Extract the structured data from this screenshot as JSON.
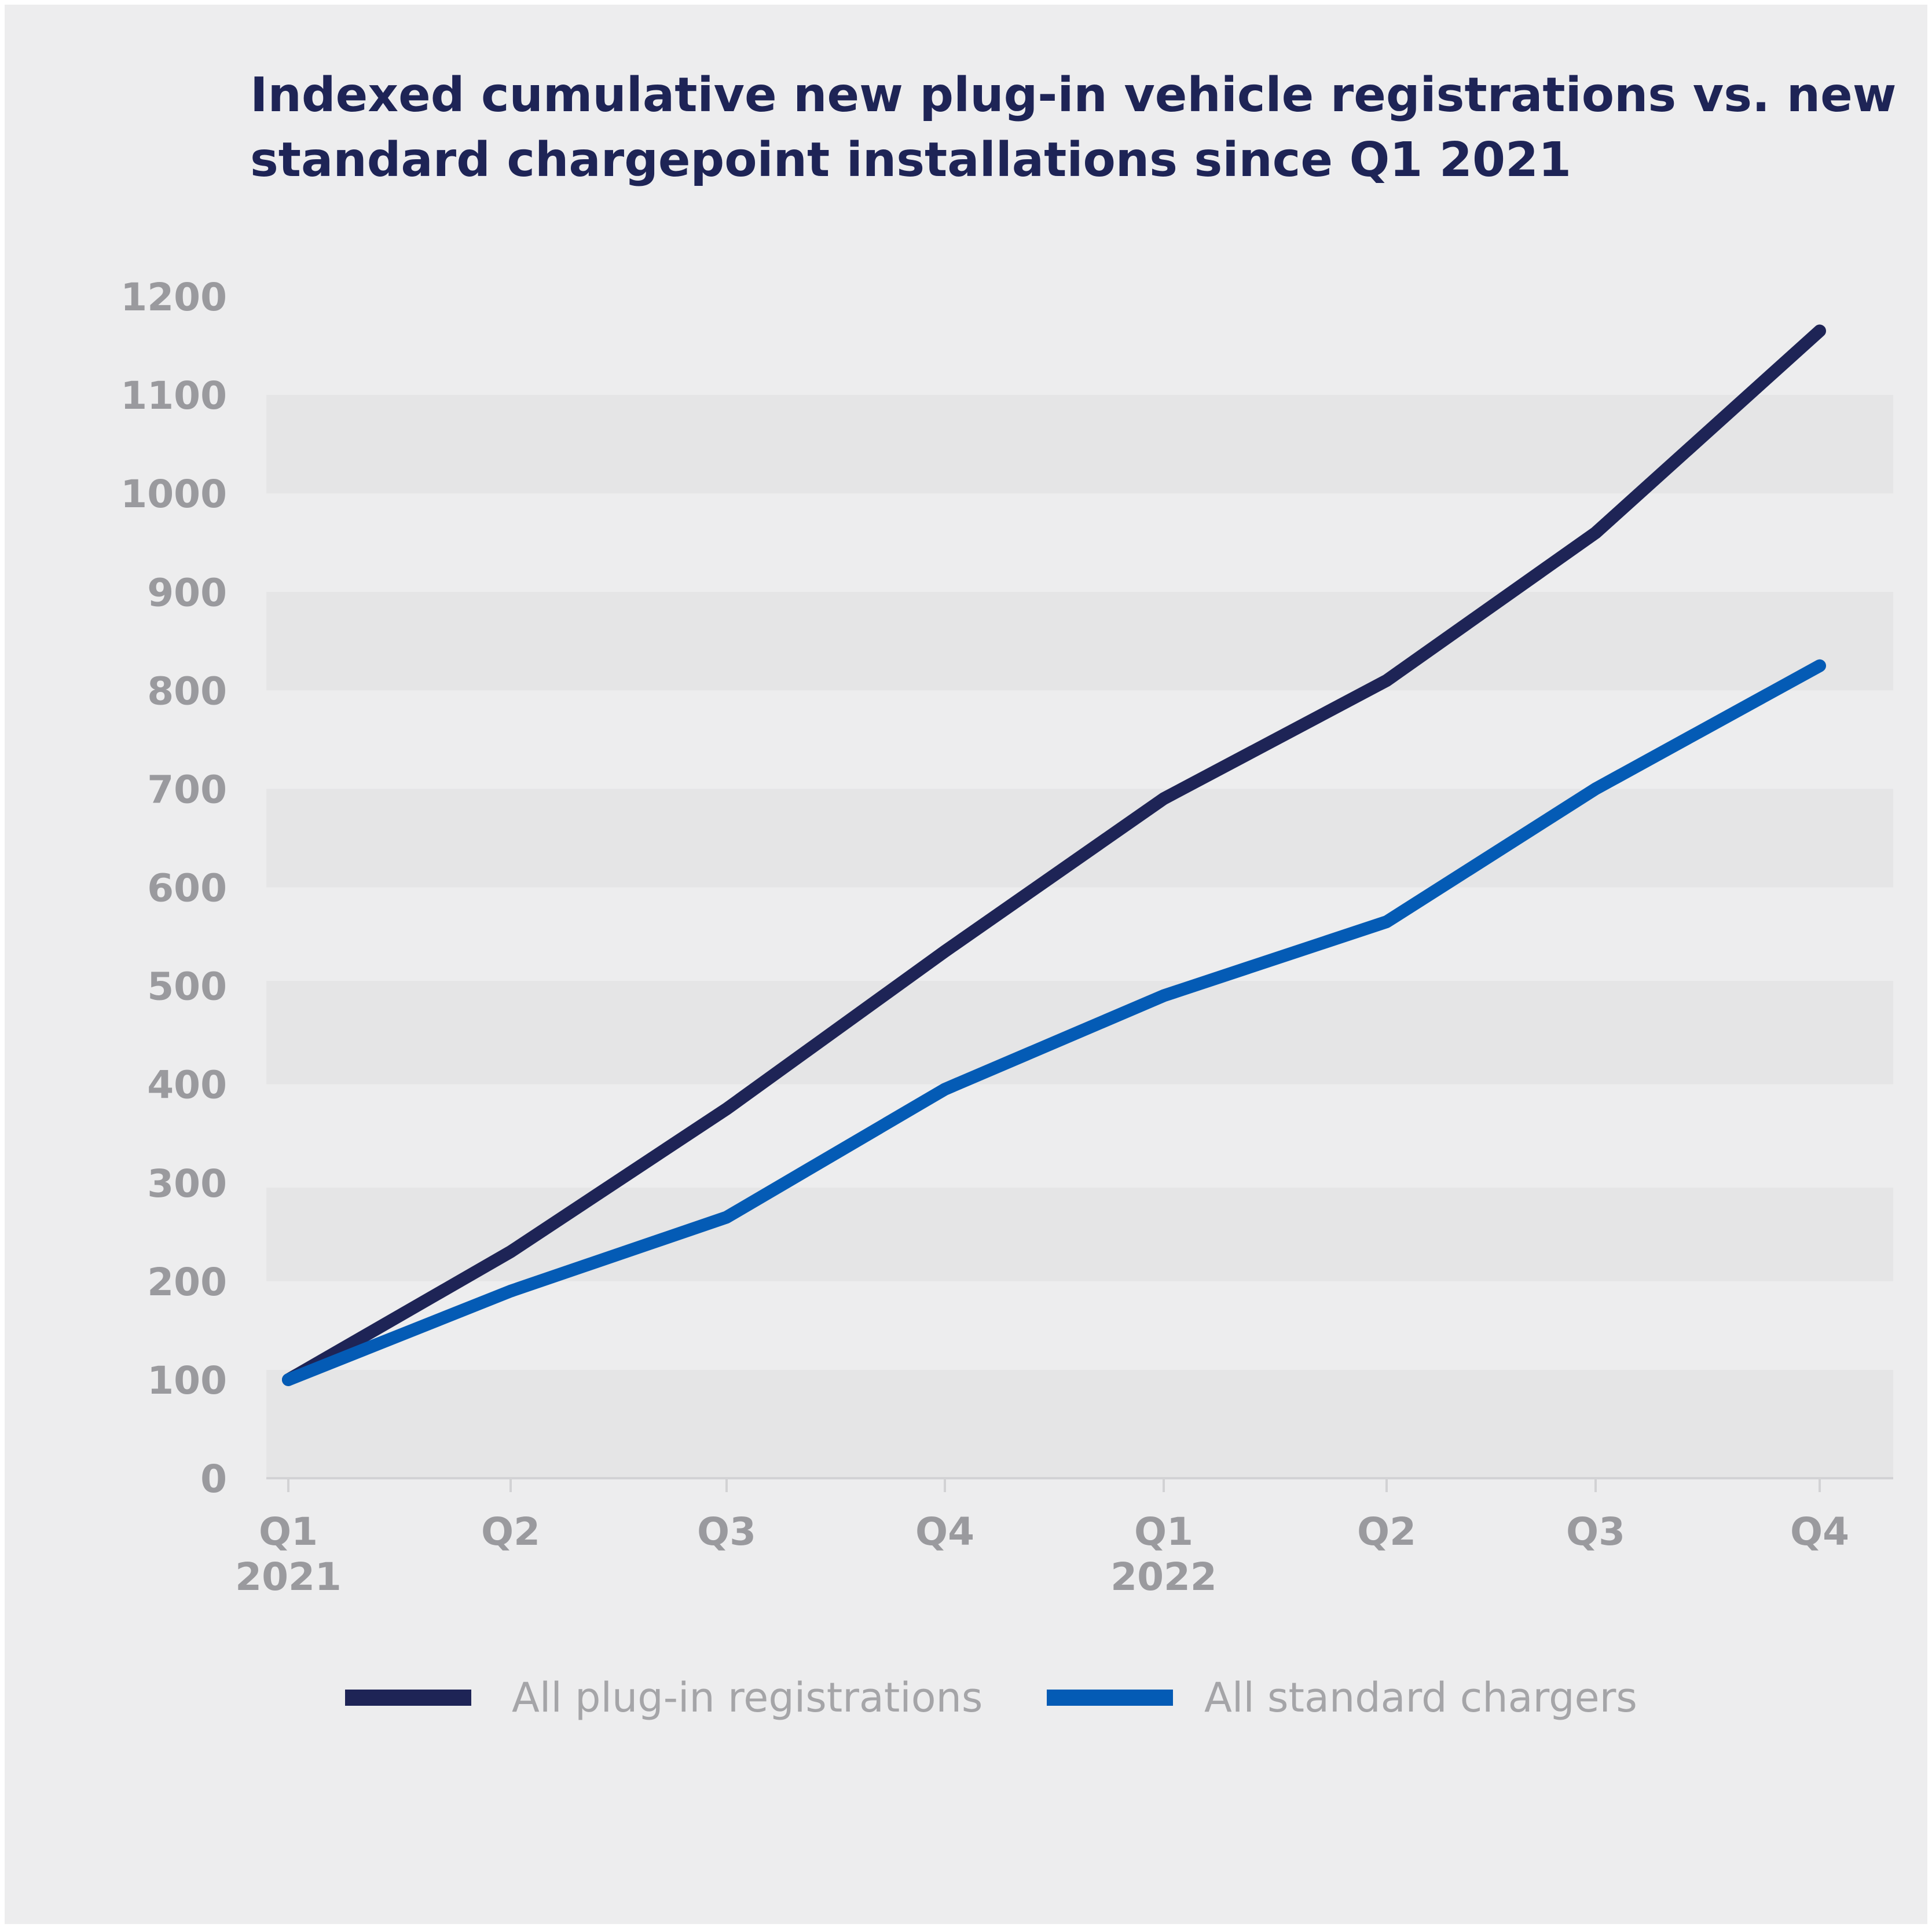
{
  "chart_data": {
    "type": "line",
    "title_lines": [
      "Indexed cumulative new plug-in vehicle registrations vs. new",
      "standard chargepoint installations since Q1 2021"
    ],
    "x_tick_labels": [
      [
        "Q1",
        "2021"
      ],
      [
        "Q2",
        ""
      ],
      [
        "Q3",
        ""
      ],
      [
        "Q4",
        ""
      ],
      [
        "Q1",
        "2022"
      ],
      [
        "Q2",
        ""
      ],
      [
        "Q3",
        ""
      ],
      [
        "Q4",
        ""
      ]
    ],
    "y_ticks": [
      0,
      100,
      200,
      300,
      400,
      500,
      600,
      700,
      800,
      900,
      1000,
      1100,
      1200
    ],
    "ylim": [
      0,
      1200
    ],
    "xlabel": "",
    "ylabel": "",
    "series": [
      {
        "name": "All plug-in registrations",
        "color": "#1e2456",
        "values": [
          100,
          230,
          375,
          535,
          690,
          810,
          960,
          1165
        ]
      },
      {
        "name": "All standard chargers",
        "color": "#045bb5",
        "values": [
          100,
          190,
          265,
          395,
          490,
          565,
          700,
          825
        ]
      }
    ],
    "grid": "alternating horizontal bands",
    "legend_position": "bottom",
    "colors": {
      "background": "#ededee",
      "band": "#e5e5e6",
      "axis": "#d2d2d4"
    }
  }
}
